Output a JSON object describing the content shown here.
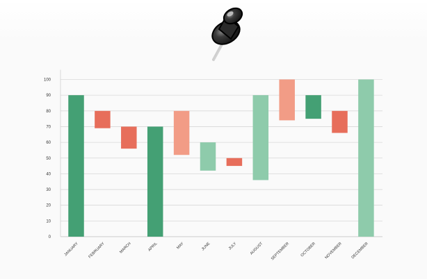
{
  "chart_data": {
    "type": "bar",
    "subtype": "floating-bar",
    "categories": [
      "JANUARY",
      "FEBRUARY",
      "MARCH",
      "APRIL",
      "MAY",
      "JUNE",
      "JULY",
      "AUGUST",
      "SEPTEMBER",
      "OCTOBER",
      "NOVEMBER",
      "DECEMBER"
    ],
    "series": [
      {
        "ranges": [
          [
            0,
            90
          ],
          [
            69,
            80
          ],
          [
            56,
            70
          ],
          [
            0,
            70
          ],
          [
            52,
            80
          ],
          [
            42,
            60
          ],
          [
            45,
            50
          ],
          [
            36,
            90
          ],
          [
            74,
            100
          ],
          [
            75,
            90
          ],
          [
            66,
            80
          ],
          [
            0,
            100
          ]
        ],
        "colors": [
          "#44a074",
          "#e76e5b",
          "#e76e5b",
          "#44a074",
          "#f29c86",
          "#8ecbab",
          "#e76e5b",
          "#8ecbab",
          "#f29c86",
          "#44a074",
          "#e76e5b",
          "#8ecbab"
        ]
      }
    ],
    "yticks": [
      "0",
      "10",
      "20",
      "30",
      "40",
      "50",
      "60",
      "70",
      "80",
      "90",
      "100"
    ],
    "ylim": [
      0,
      100
    ],
    "grid": true,
    "legend": "none"
  },
  "decoration": {
    "pin_icon": "pushpin-icon"
  }
}
